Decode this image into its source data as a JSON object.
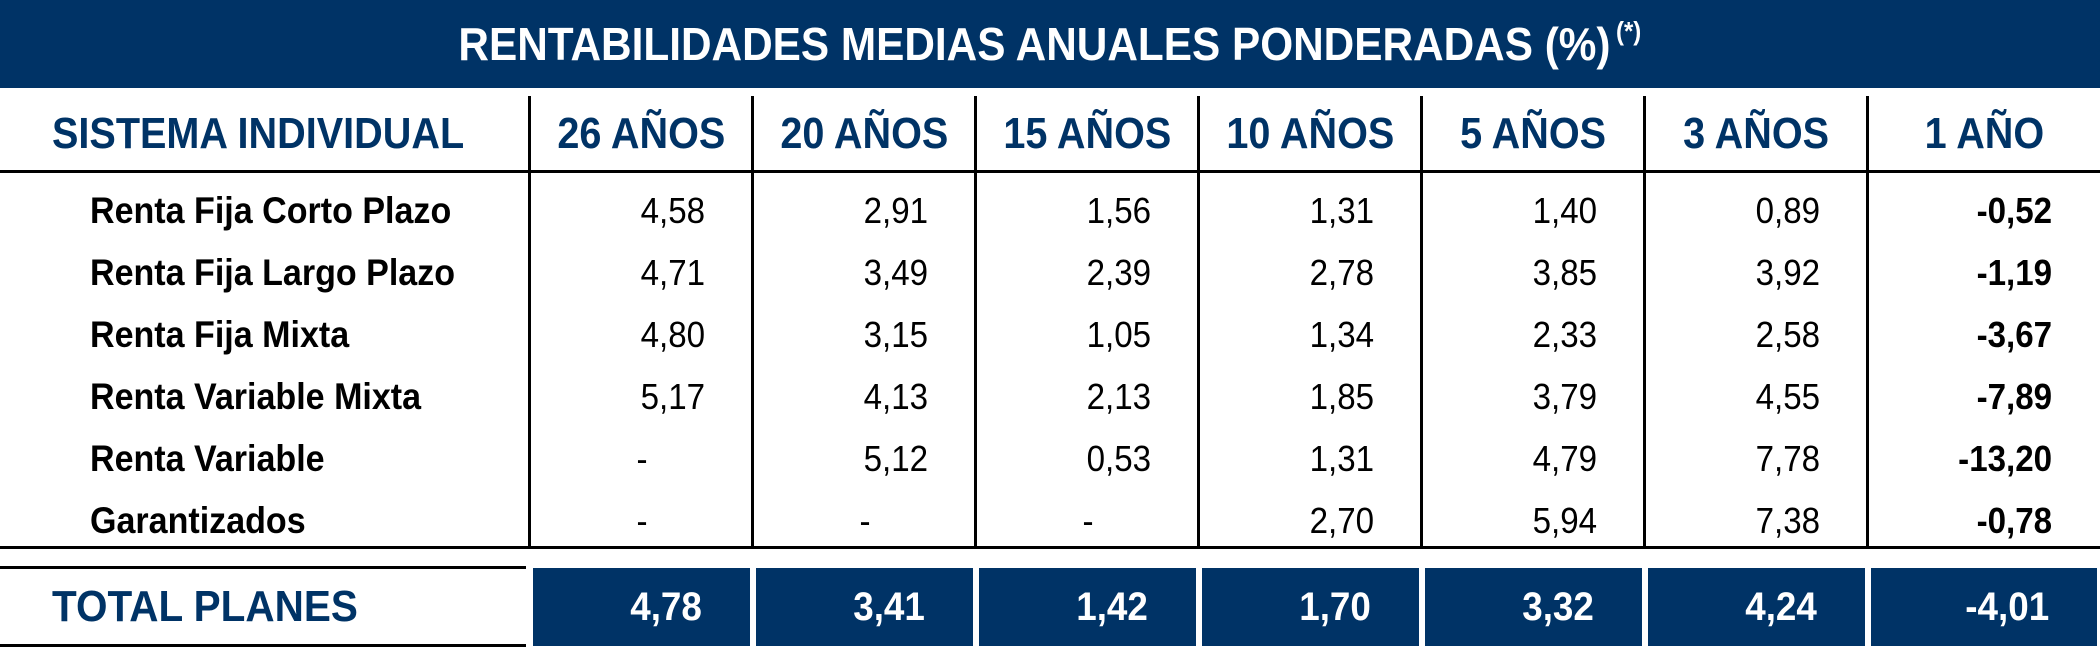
{
  "chart_data": {
    "type": "table",
    "title": "RENTABILIDADES MEDIAS ANUALES PONDERADAS (%)",
    "title_note": "(*)",
    "row_header": "SISTEMA INDIVIDUAL",
    "columns": [
      "26 AÑOS",
      "20 AÑOS",
      "15 AÑOS",
      "10 AÑOS",
      "5 AÑOS",
      "3 AÑOS",
      "1 AÑO"
    ],
    "rows": [
      {
        "label": "Renta Fija Corto Plazo",
        "values": [
          "4,58",
          "2,91",
          "1,56",
          "1,31",
          "1,40",
          "0,89",
          "-0,52"
        ]
      },
      {
        "label": "Renta Fija Largo Plazo",
        "values": [
          "4,71",
          "3,49",
          "2,39",
          "2,78",
          "3,85",
          "3,92",
          "-1,19"
        ]
      },
      {
        "label": "Renta Fija Mixta",
        "values": [
          "4,80",
          "3,15",
          "1,05",
          "1,34",
          "2,33",
          "2,58",
          "-3,67"
        ]
      },
      {
        "label": "Renta Variable Mixta",
        "values": [
          "5,17",
          "4,13",
          "2,13",
          "1,85",
          "3,79",
          "4,55",
          "-7,89"
        ]
      },
      {
        "label": "Renta Variable",
        "values": [
          "-",
          "5,12",
          "0,53",
          "1,31",
          "4,79",
          "7,78",
          "-13,20"
        ]
      },
      {
        "label": "Garantizados",
        "values": [
          "-",
          "-",
          "-",
          "2,70",
          "5,94",
          "7,38",
          "-0,78"
        ]
      }
    ],
    "total": {
      "label": "TOTAL PLANES",
      "values": [
        "4,78",
        "3,41",
        "1,42",
        "1,70",
        "3,32",
        "4,24",
        "-4,01"
      ]
    },
    "colors": {
      "header_band": "#003366",
      "header_text": "#003366",
      "total_fill": "#003366",
      "total_text": "#ffffff"
    }
  }
}
